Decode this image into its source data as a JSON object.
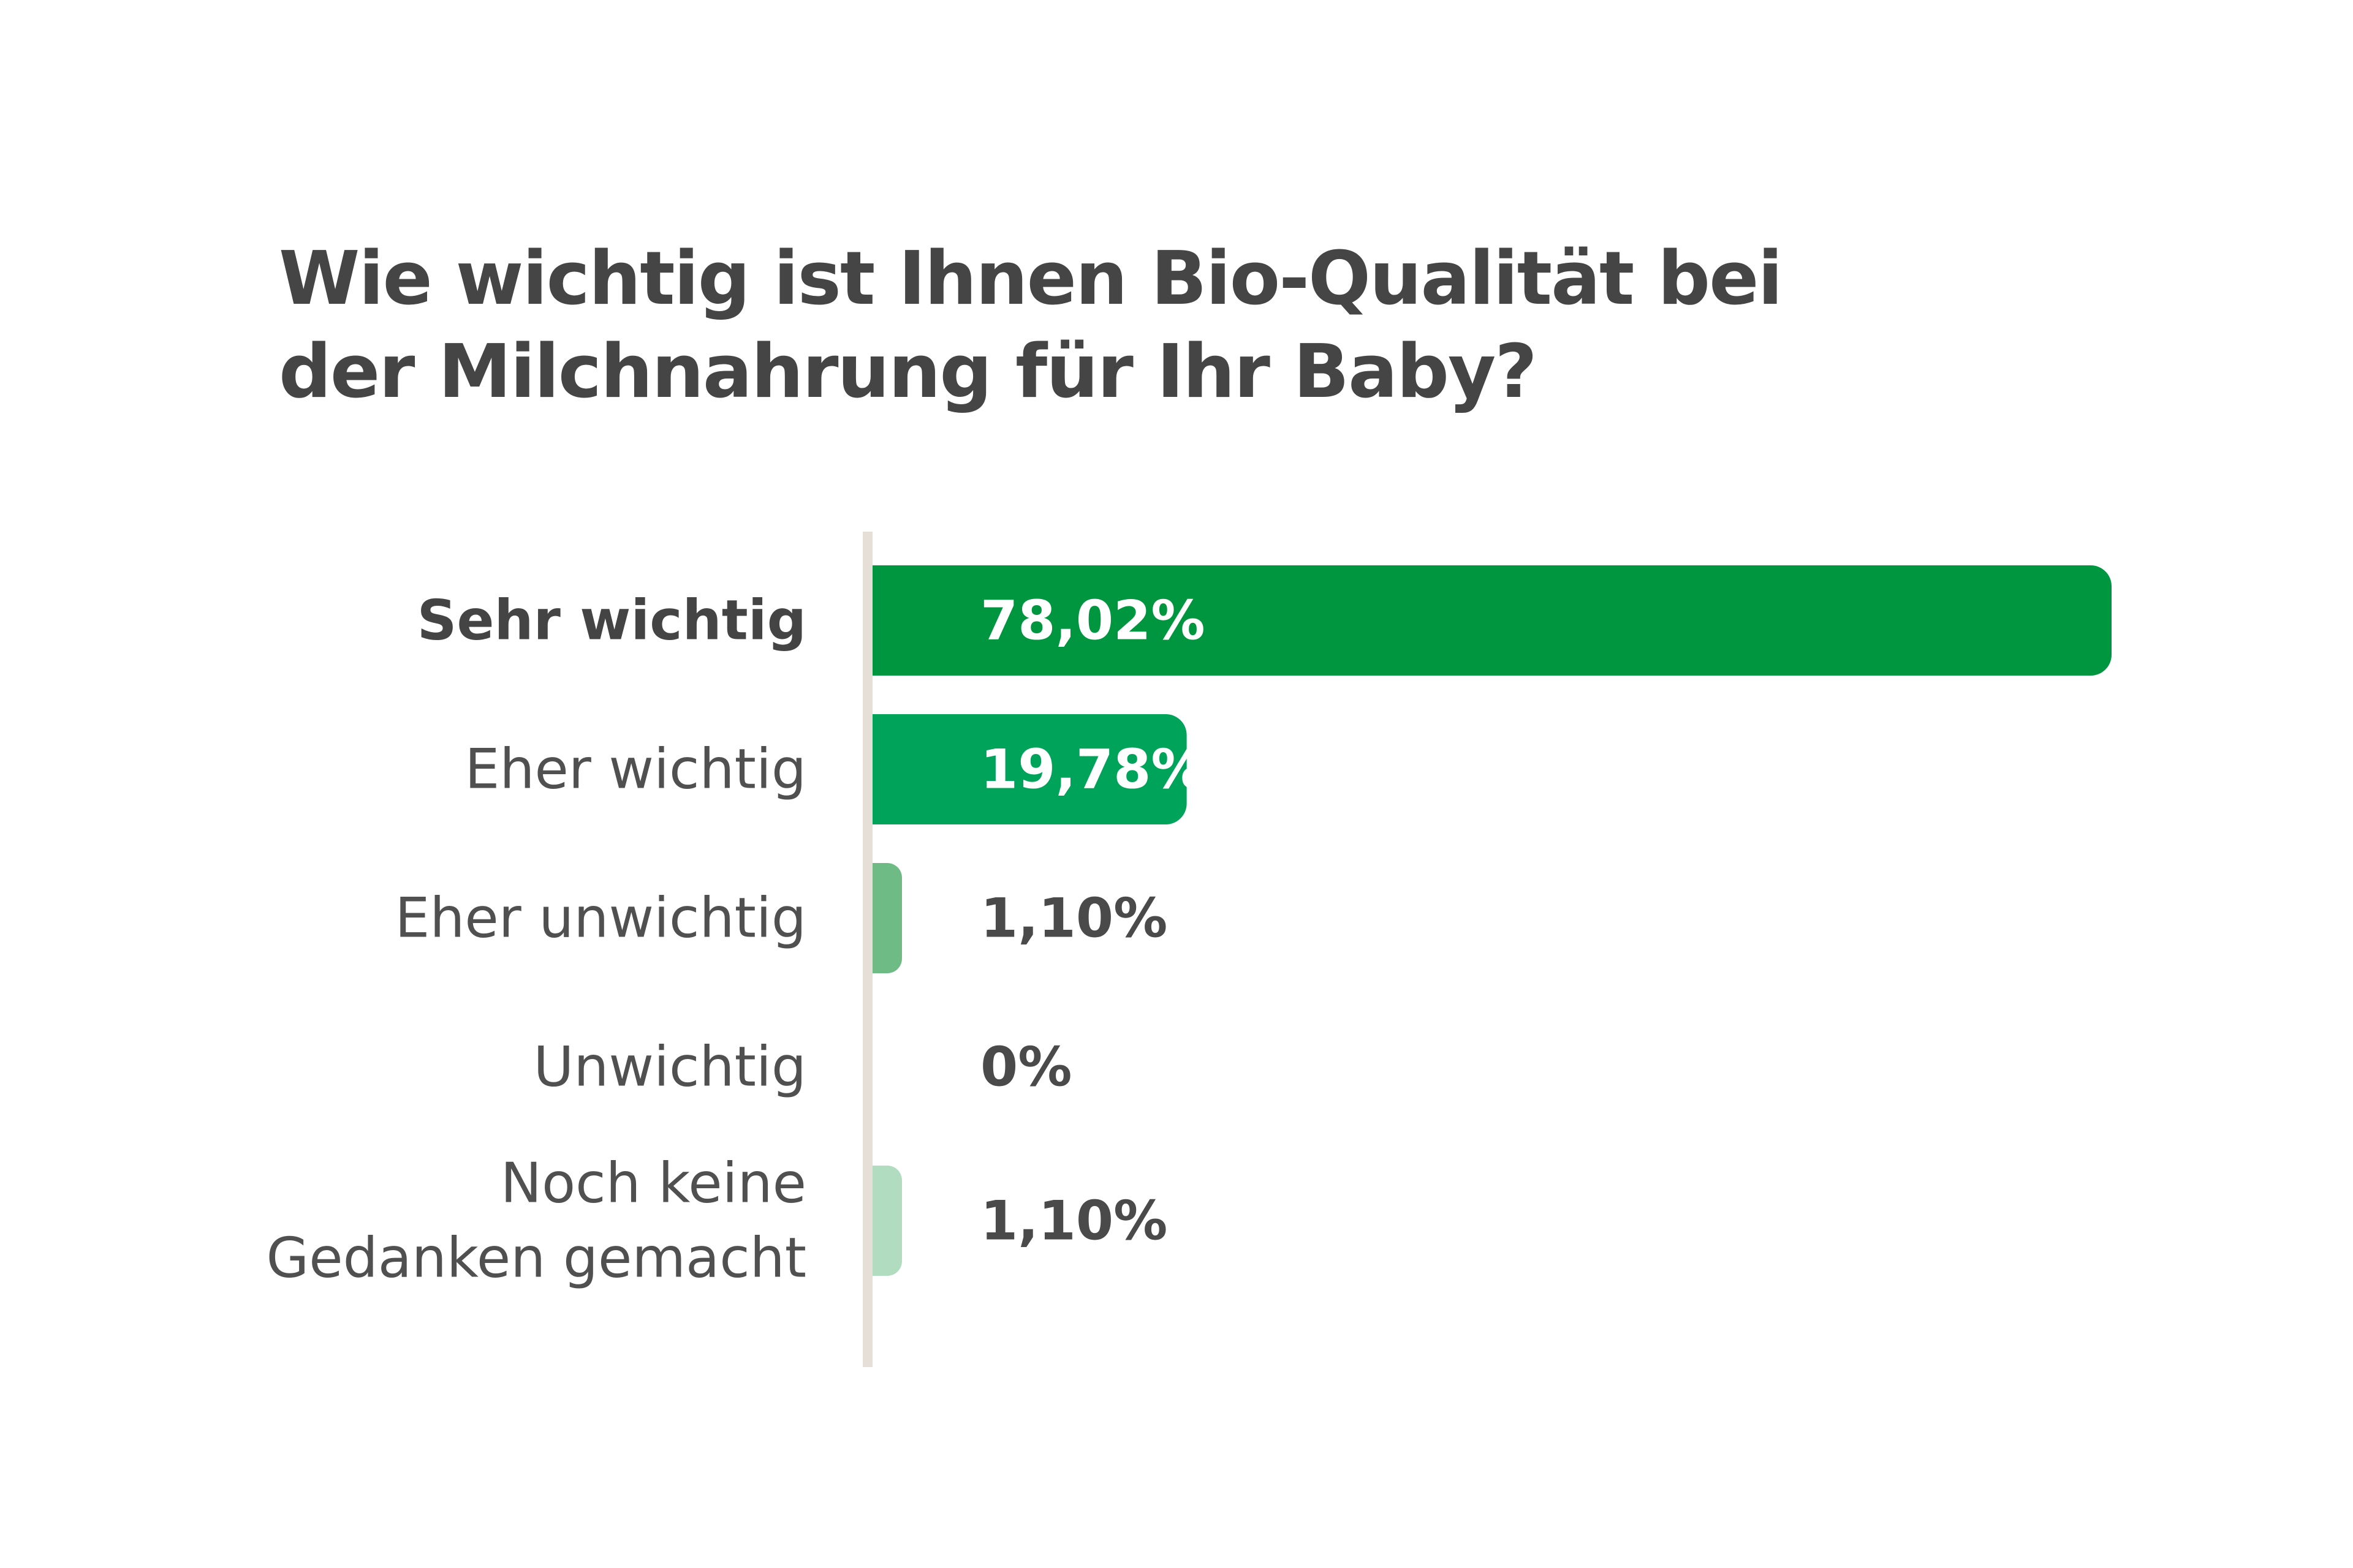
{
  "chart_data": {
    "type": "bar",
    "orientation": "horizontal",
    "title": "Wie wichtig ist Ihnen Bio-Qualität bei der Milchnahrung für Ihr Baby?",
    "categories": [
      [
        "Sehr wichtig"
      ],
      [
        "Eher wichtig"
      ],
      [
        "Eher unwichtig"
      ],
      [
        "Unwichtig"
      ],
      [
        "Noch keine",
        "Gedanken gemacht"
      ]
    ],
    "values": [
      78.02,
      19.78,
      1.1,
      0,
      1.1
    ],
    "value_labels": [
      "78,02%",
      "19,78%",
      "1,10%",
      "0%",
      "1,10%"
    ],
    "bar_colors": [
      "#00953f",
      "#00a35a",
      "#6ebb86",
      "#9fd3b1",
      "#b2dcc0"
    ],
    "value_label_colors": [
      "#ffffff",
      "#ffffff",
      "#4a4a4a",
      "#4a4a4a",
      "#4a4a4a"
    ],
    "highlighted_category_index": 0,
    "axis_color": "#e5dfd8",
    "xlim": [
      0,
      78.02
    ],
    "grid": false,
    "legend": "none"
  }
}
